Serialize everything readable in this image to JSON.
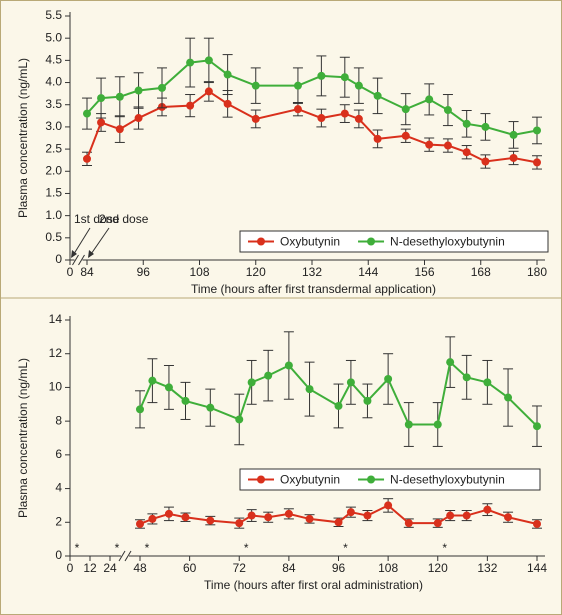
{
  "chart_data": [
    {
      "type": "line",
      "y_label": "Plasma concentration (ng/mL)",
      "x_label": "Time (hours after first transdermal application)",
      "x": [
        84,
        87,
        91,
        95,
        100,
        106,
        110,
        114,
        120,
        129,
        134,
        139,
        142,
        146,
        152,
        157,
        161,
        165,
        169,
        175,
        180
      ],
      "series": [
        {
          "name": "Oxybutynin",
          "color": "#d9301c",
          "values": [
            2.28,
            3.1,
            2.95,
            3.2,
            3.45,
            3.48,
            3.8,
            3.52,
            3.18,
            3.4,
            3.2,
            3.3,
            3.18,
            2.73,
            2.8,
            2.6,
            2.58,
            2.43,
            2.22,
            2.3,
            2.2
          ],
          "errors": [
            0.15,
            0.2,
            0.3,
            0.25,
            0.2,
            0.25,
            0.22,
            0.3,
            0.2,
            0.15,
            0.2,
            0.2,
            0.2,
            0.2,
            0.15,
            0.15,
            0.15,
            0.15,
            0.15,
            0.15,
            0.15
          ]
        },
        {
          "name": "N-desethyloxybutynin",
          "color": "#3fae3a",
          "values": [
            3.3,
            3.65,
            3.68,
            3.82,
            3.88,
            4.45,
            4.5,
            4.18,
            3.93,
            3.93,
            4.15,
            4.12,
            3.93,
            3.7,
            3.4,
            3.62,
            3.38,
            3.07,
            3.0,
            2.82,
            2.92
          ],
          "errors": [
            0.35,
            0.45,
            0.45,
            0.4,
            0.45,
            0.55,
            0.5,
            0.45,
            0.4,
            0.4,
            0.45,
            0.45,
            0.4,
            0.4,
            0.35,
            0.35,
            0.35,
            0.3,
            0.3,
            0.3,
            0.3
          ]
        }
      ],
      "xlim": [
        0,
        180
      ],
      "xticks": [
        0,
        84,
        96,
        108,
        120,
        132,
        144,
        156,
        168,
        180
      ],
      "axis_break": true,
      "ylim": [
        0,
        5.5
      ],
      "yticks": [
        0,
        0.5,
        {
          "value": 1,
          "label": "1.0"
        },
        1.5,
        {
          "value": 2,
          "label": "2.0"
        },
        2.5,
        {
          "value": 3,
          "label": "3.0"
        },
        3.5,
        {
          "value": 4,
          "label": "4.0"
        },
        4.5,
        {
          "value": 5,
          "label": "5.0"
        },
        5.5
      ],
      "annotations": [
        {
          "text": "1st dose",
          "x": 0
        },
        {
          "text": "2nd dose",
          "x": 84
        }
      ],
      "legend": "lower right"
    },
    {
      "type": "line",
      "y_label": "Plasma concentration (ng/mL)",
      "x_label": "Time (hours after first oral administration)",
      "x": [
        48,
        51,
        55,
        59,
        65,
        72,
        75,
        79,
        84,
        89,
        96,
        99,
        103,
        108,
        113,
        120,
        123,
        127,
        132,
        137,
        144
      ],
      "series": [
        {
          "name": "Oxybutynin",
          "color": "#d9301c",
          "values": [
            1.9,
            2.2,
            2.5,
            2.3,
            2.1,
            1.95,
            2.4,
            2.3,
            2.5,
            2.2,
            2.0,
            2.6,
            2.4,
            3.0,
            1.95,
            1.95,
            2.4,
            2.4,
            2.75,
            2.3,
            1.9
          ],
          "errors": [
            0.25,
            0.3,
            0.4,
            0.25,
            0.25,
            0.3,
            0.35,
            0.3,
            0.3,
            0.25,
            0.25,
            0.3,
            0.3,
            0.4,
            0.25,
            0.25,
            0.3,
            0.3,
            0.35,
            0.3,
            0.25
          ]
        },
        {
          "name": "N-desethyloxybutynin",
          "color": "#3fae3a",
          "values": [
            8.7,
            10.4,
            10.0,
            9.2,
            8.8,
            8.1,
            10.3,
            10.7,
            11.3,
            9.9,
            8.9,
            10.3,
            9.2,
            10.5,
            7.8,
            7.8,
            11.5,
            10.6,
            10.3,
            9.4,
            7.7
          ],
          "errors": [
            1.1,
            1.3,
            1.3,
            1.1,
            1.1,
            1.5,
            1.3,
            1.5,
            2.0,
            1.6,
            1.3,
            1.3,
            1.0,
            1.5,
            1.3,
            1.3,
            1.5,
            1.3,
            1.3,
            1.7,
            1.2
          ]
        }
      ],
      "xlim": [
        0,
        144
      ],
      "xticks": [
        0,
        12,
        24,
        48,
        60,
        72,
        84,
        96,
        108,
        120,
        132,
        144
      ],
      "axis_break": true,
      "ylim": [
        0,
        14
      ],
      "yticks": [
        0,
        2,
        4,
        6,
        8,
        10,
        12,
        14
      ],
      "annotations": [
        {
          "text": "*",
          "x": 0
        },
        {
          "text": "*",
          "x": 24
        },
        {
          "text": "*",
          "x": 48
        },
        {
          "text": "*",
          "x": 72
        },
        {
          "text": "*",
          "x": 96
        },
        {
          "text": "*",
          "x": 120
        }
      ],
      "legend": "lower right"
    }
  ]
}
